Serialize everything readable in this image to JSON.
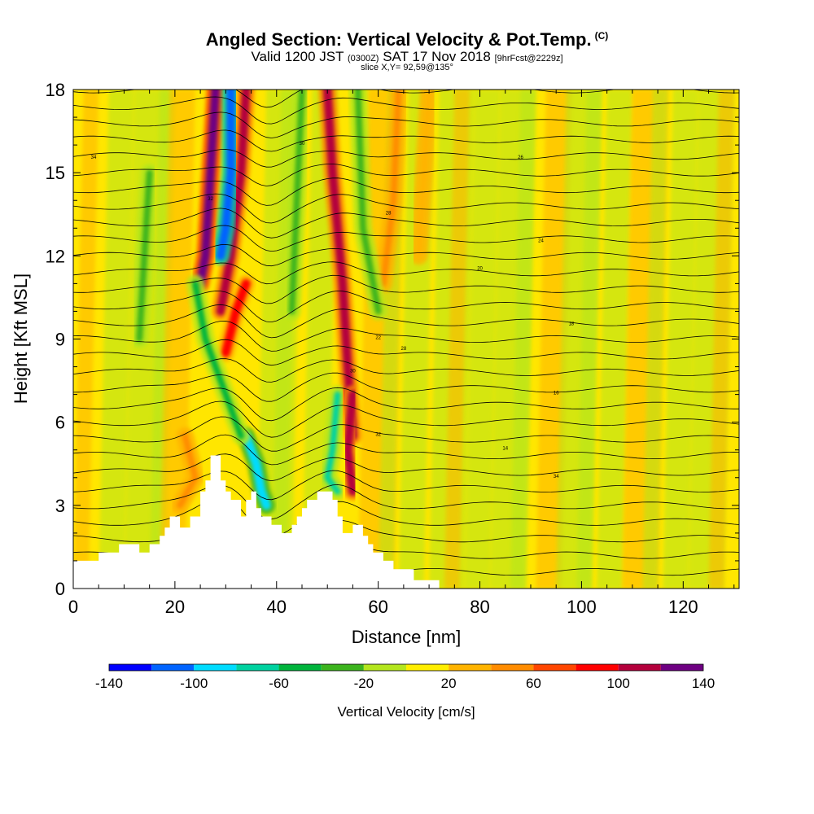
{
  "title": {
    "main": "Angled Section: Vertical Velocity & Pot.Temp.",
    "main_unit": "(C)",
    "valid_prefix": "Valid 1200 JST",
    "valid_utc": "(0300Z)",
    "valid_date": "SAT 17 Nov 2018",
    "forecast": "[9hrFcst@2229z]",
    "slice": "slice X,Y= 92,59@135°"
  },
  "chart_data": {
    "type": "heatmap",
    "xlabel": "Distance [nm]",
    "ylabel": "Height [Kft MSL]",
    "xlim": [
      0,
      131
    ],
    "ylim": [
      0,
      18
    ],
    "x_ticks": [
      0,
      20,
      40,
      60,
      80,
      100,
      120
    ],
    "y_ticks": [
      0,
      3,
      6,
      9,
      12,
      15,
      18
    ],
    "colorbar": {
      "label": "Vertical Velocity [cm/s]",
      "tick_labels": [
        -140,
        -100,
        -60,
        -20,
        20,
        60,
        100,
        140
      ],
      "bounds": [
        -140,
        -120,
        -100,
        -80,
        -60,
        -40,
        -20,
        0,
        20,
        40,
        60,
        80,
        100,
        120,
        140
      ],
      "colors": [
        "#0000ff",
        "#0064ff",
        "#00dcff",
        "#00d2a0",
        "#00b43c",
        "#3cb41e",
        "#b4e61e",
        "#ffee00",
        "#ffb400",
        "#ff8c00",
        "#ff4600",
        "#ff0000",
        "#b4003c",
        "#6e0082"
      ]
    },
    "background_color": "#ffe600",
    "terrain": [
      [
        0,
        1
      ],
      [
        5,
        1
      ],
      [
        5,
        1.3
      ],
      [
        9,
        1.3
      ],
      [
        9,
        1.6
      ],
      [
        13,
        1.6
      ],
      [
        13,
        1.3
      ],
      [
        15,
        1.3
      ],
      [
        15,
        1.6
      ],
      [
        17,
        1.6
      ],
      [
        17,
        1.9
      ],
      [
        18,
        1.9
      ],
      [
        18,
        2.2
      ],
      [
        19,
        2.2
      ],
      [
        19,
        2.6
      ],
      [
        21,
        2.6
      ],
      [
        21,
        2.2
      ],
      [
        23,
        2.2
      ],
      [
        23,
        2.6
      ],
      [
        25,
        2.6
      ],
      [
        25,
        3.5
      ],
      [
        26,
        3.5
      ],
      [
        26,
        3.9
      ],
      [
        27,
        3.9
      ],
      [
        27,
        4.8
      ],
      [
        29,
        4.8
      ],
      [
        29,
        3.9
      ],
      [
        30,
        3.9
      ],
      [
        30,
        3.5
      ],
      [
        31,
        3.5
      ],
      [
        31,
        3.2
      ],
      [
        33,
        3.2
      ],
      [
        33,
        2.6
      ],
      [
        34,
        2.6
      ],
      [
        34,
        3.2
      ],
      [
        35,
        3.2
      ],
      [
        35,
        3.5
      ],
      [
        36,
        3.5
      ],
      [
        36,
        2.9
      ],
      [
        37,
        2.9
      ],
      [
        37,
        2.6
      ],
      [
        39,
        2.6
      ],
      [
        39,
        2.3
      ],
      [
        41,
        2.3
      ],
      [
        41,
        2
      ],
      [
        43,
        2
      ],
      [
        43,
        2.3
      ],
      [
        44,
        2.3
      ],
      [
        44,
        2.6
      ],
      [
        45,
        2.6
      ],
      [
        45,
        2.9
      ],
      [
        46,
        2.9
      ],
      [
        46,
        3.2
      ],
      [
        48,
        3.2
      ],
      [
        48,
        3.5
      ],
      [
        51,
        3.5
      ],
      [
        51,
        3.2
      ],
      [
        52,
        3.2
      ],
      [
        52,
        2.6
      ],
      [
        53,
        2.6
      ],
      [
        53,
        2
      ],
      [
        55,
        2
      ],
      [
        55,
        2.3
      ],
      [
        57,
        2.3
      ],
      [
        57,
        1.9
      ],
      [
        58,
        1.9
      ],
      [
        58,
        1.6
      ],
      [
        59,
        1.6
      ],
      [
        59,
        1.3
      ],
      [
        61,
        1.3
      ],
      [
        61,
        1
      ],
      [
        63,
        1
      ],
      [
        63,
        0.7
      ],
      [
        67,
        0.7
      ],
      [
        67,
        0.3
      ],
      [
        72,
        0.3
      ],
      [
        72,
        0
      ],
      [
        0,
        0
      ]
    ],
    "updraft_bands": [
      {
        "x": [
          28,
          27,
          26,
          25
        ],
        "y": [
          18,
          15,
          12,
          11
        ],
        "value": 120
      },
      {
        "x": [
          34,
          33,
          31,
          29
        ],
        "y": [
          18,
          15,
          12,
          10
        ],
        "value": 100
      },
      {
        "x": [
          50,
          51,
          53,
          54,
          55
        ],
        "y": [
          18,
          15,
          11,
          8,
          5.5
        ],
        "value": 100
      },
      {
        "x": [
          55,
          54,
          55
        ],
        "y": [
          7,
          5,
          3.5
        ],
        "value": 110
      },
      {
        "x": [
          64,
          63,
          61
        ],
        "y": [
          18,
          14,
          11
        ],
        "value": 40
      },
      {
        "x": [
          70,
          69,
          68
        ],
        "y": [
          18,
          15,
          12
        ],
        "value": 30
      },
      {
        "x": [
          34,
          32,
          30
        ],
        "y": [
          11,
          10,
          8.5
        ],
        "value": 90
      },
      {
        "x": [
          22,
          24,
          21
        ],
        "y": [
          5.5,
          4,
          3
        ],
        "value": 40
      }
    ],
    "downdraft_bands": [
      {
        "x": [
          31,
          31,
          30,
          29
        ],
        "y": [
          18,
          15,
          13,
          12
        ],
        "value": -120
      },
      {
        "x": [
          34,
          36,
          37,
          38
        ],
        "y": [
          5.5,
          4.5,
          3.5,
          3
        ],
        "value": -90
      },
      {
        "x": [
          24,
          26,
          30,
          33
        ],
        "y": [
          11,
          9,
          7,
          5.5
        ],
        "value": -50
      },
      {
        "x": [
          52,
          51,
          50,
          52
        ],
        "y": [
          7,
          5,
          4,
          3.5
        ],
        "value": -70
      },
      {
        "x": [
          15,
          14,
          13
        ],
        "y": [
          15,
          12,
          9
        ],
        "value": -30
      },
      {
        "x": [
          45,
          44,
          43
        ],
        "y": [
          18,
          14,
          10
        ],
        "value": -30
      },
      {
        "x": [
          56,
          57,
          60
        ],
        "y": [
          18,
          13,
          10
        ],
        "value": -30
      }
    ],
    "contour_label_values": [
      34,
      32,
      30,
      28,
      26,
      24,
      22,
      20,
      18,
      16,
      14
    ]
  }
}
